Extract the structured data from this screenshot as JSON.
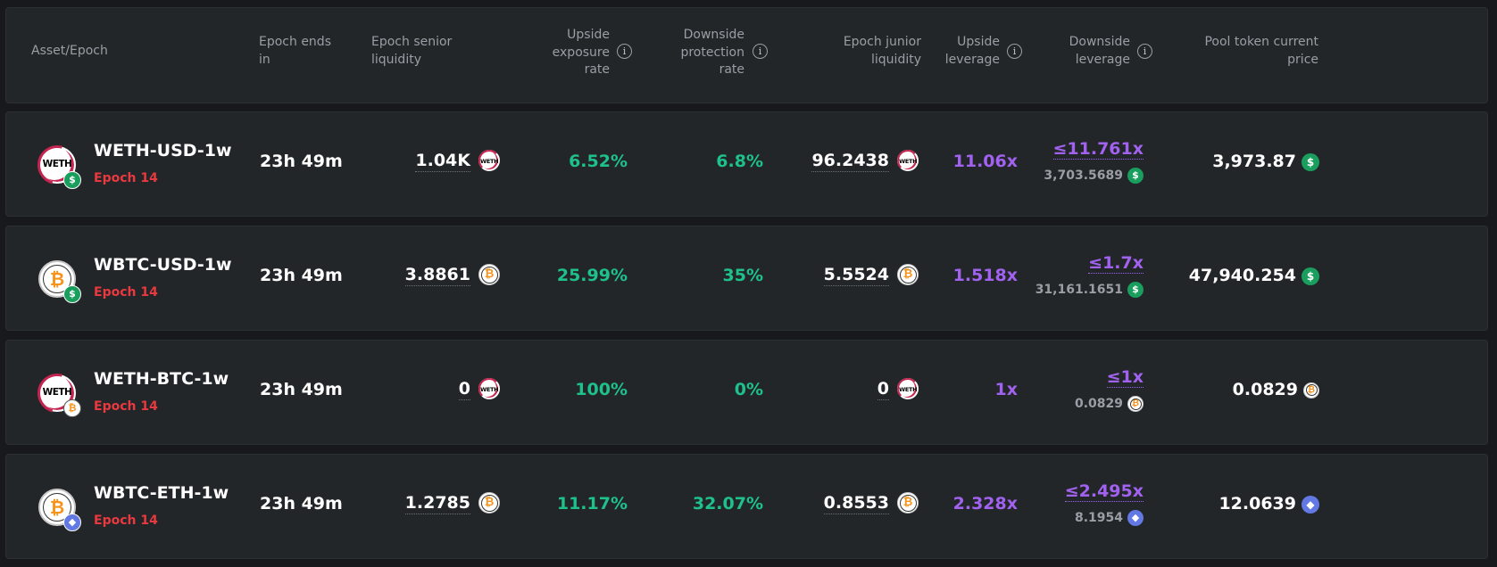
{
  "header": {
    "asset_epoch": "Asset/Epoch",
    "epoch_ends": "Epoch ends in",
    "senior_liquidity": "Epoch senior liquidity",
    "upside_exposure": "Upside exposure rate",
    "downside_protection": "Downside protection rate",
    "junior_liquidity": "Epoch junior liquidity",
    "upside_leverage": "Upside leverage",
    "downside_leverage": "Downside leverage",
    "pool_price": "Pool token current price",
    "info_glyph": "i"
  },
  "rows": [
    {
      "asset": "WETH-USD-1w",
      "epoch": "Epoch 14",
      "ends_in": "23h 49m",
      "senior": "1.04K",
      "senior_token": "WETH",
      "upside_rate": "6.52%",
      "downside_rate": "6.8%",
      "junior": "96.2438",
      "junior_token": "WETH",
      "upside_leverage": "11.06x",
      "downside_leverage": "≤11.761x",
      "downside_sub": "3,703.5689",
      "price": "3,973.87"
    },
    {
      "asset": "WBTC-USD-1w",
      "epoch": "Epoch 14",
      "ends_in": "23h 49m",
      "senior": "3.8861",
      "senior_token": "₿",
      "upside_rate": "25.99%",
      "downside_rate": "35%",
      "junior": "5.5524",
      "junior_token": "₿",
      "upside_leverage": "1.518x",
      "downside_leverage": "≤1.7x",
      "downside_sub": "31,161.1651",
      "price": "47,940.254"
    },
    {
      "asset": "WETH-BTC-1w",
      "epoch": "Epoch 14",
      "ends_in": "23h 49m",
      "senior": "0",
      "senior_token": "WETH",
      "upside_rate": "100%",
      "downside_rate": "0%",
      "junior": "0",
      "junior_token": "WETH",
      "upside_leverage": "1x",
      "downside_leverage": "≤1x",
      "downside_sub": "0.0829",
      "price": "0.0829"
    },
    {
      "asset": "WBTC-ETH-1w",
      "epoch": "Epoch 14",
      "ends_in": "23h 49m",
      "senior": "1.2785",
      "senior_token": "₿",
      "upside_rate": "11.17%",
      "downside_rate": "32.07%",
      "junior": "0.8553",
      "junior_token": "₿",
      "upside_leverage": "2.328x",
      "downside_leverage": "≤2.495x",
      "downside_sub": "8.1954",
      "price": "12.0639"
    }
  ],
  "icons": {
    "weth_label": "WETH",
    "btc_glyph": "₿",
    "usd_glyph": "$",
    "eth_glyph": "◆"
  },
  "colors": {
    "background": "#17191c",
    "panel": "#232629",
    "green": "#1fc18a",
    "purple": "#a262f0",
    "red": "#e8393f",
    "muted": "#9a9ea5"
  }
}
